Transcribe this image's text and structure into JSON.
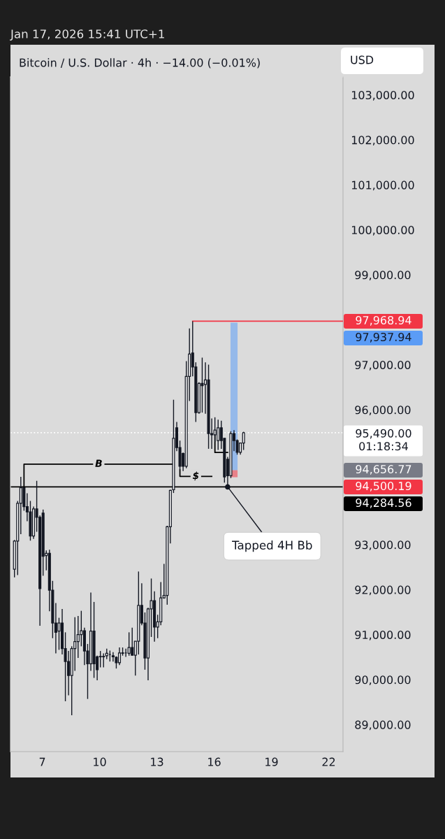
{
  "chart_data": {
    "type": "candlestick",
    "title": "Bitcoin / U.S. Dollar · 4h · −14.00 (−0.01%)",
    "subtitle": "Jan 17, 2026 15:41 UTC+1",
    "ylabel": "USD",
    "x": [
      "2026-01-05T13:00",
      "2026-01-05T17:00",
      "2026-01-05T21:00",
      "2026-01-06T01:00",
      "2026-01-06T05:00",
      "2026-01-06T09:00",
      "2026-01-06T13:00",
      "2026-01-06T17:00",
      "2026-01-06T21:00",
      "2026-01-07T01:00",
      "2026-01-07T05:00",
      "2026-01-07T09:00",
      "2026-01-07T13:00",
      "2026-01-07T17:00",
      "2026-01-07T21:00",
      "2026-01-08T01:00",
      "2026-01-08T05:00",
      "2026-01-08T09:00",
      "2026-01-08T13:00",
      "2026-01-08T17:00",
      "2026-01-08T21:00",
      "2026-01-09T01:00",
      "2026-01-09T05:00",
      "2026-01-09T09:00",
      "2026-01-09T13:00",
      "2026-01-09T17:00",
      "2026-01-09T21:00",
      "2026-01-10T01:00",
      "2026-01-10T05:00",
      "2026-01-10T09:00",
      "2026-01-10T13:00",
      "2026-01-10T17:00",
      "2026-01-10T21:00",
      "2026-01-11T01:00",
      "2026-01-11T05:00",
      "2026-01-11T09:00",
      "2026-01-11T13:00",
      "2026-01-11T17:00",
      "2026-01-11T21:00",
      "2026-01-12T01:00",
      "2026-01-12T05:00",
      "2026-01-12T09:00",
      "2026-01-12T13:00",
      "2026-01-12T17:00",
      "2026-01-12T21:00",
      "2026-01-13T01:00",
      "2026-01-13T05:00",
      "2026-01-13T09:00",
      "2026-01-13T13:00",
      "2026-01-13T17:00",
      "2026-01-13T21:00",
      "2026-01-14T01:00",
      "2026-01-14T05:00",
      "2026-01-14T09:00",
      "2026-01-14T13:00",
      "2026-01-14T17:00",
      "2026-01-14T21:00",
      "2026-01-15T01:00",
      "2026-01-15T05:00",
      "2026-01-15T09:00",
      "2026-01-15T13:00",
      "2026-01-15T17:00",
      "2026-01-15T21:00",
      "2026-01-16T01:00",
      "2026-01-16T05:00",
      "2026-01-16T09:00",
      "2026-01-16T13:00",
      "2026-01-16T17:00",
      "2026-01-16T21:00",
      "2026-01-17T01:00",
      "2026-01-17T05:00",
      "2026-01-17T09:00",
      "2026-01-17T13:00"
    ],
    "ohlc": [
      [
        92456,
        93105,
        92274,
        93079
      ],
      [
        93079,
        93973,
        92326,
        93921
      ],
      [
        93921,
        94508,
        93235,
        94264
      ],
      [
        94264,
        94275,
        93755,
        93848
      ],
      [
        93848,
        94145,
        93521,
        93729
      ],
      [
        93729,
        93973,
        93090,
        93194
      ],
      [
        93194,
        93848,
        93131,
        93796
      ],
      [
        93796,
        94420,
        93287,
        93609
      ],
      [
        93609,
        93650,
        91198,
        92024
      ],
      [
        93703,
        93781,
        92310,
        92741
      ],
      [
        92757,
        92871,
        92430,
        92809
      ],
      [
        92809,
        92890,
        91520,
        91988
      ],
      [
        91988,
        92196,
        90922,
        91260
      ],
      [
        91260,
        91702,
        90585,
        91052
      ],
      [
        91078,
        91375,
        90663,
        91260
      ],
      [
        91260,
        91572,
        90559,
        90689
      ],
      [
        90689,
        91052,
        89520,
        90403
      ],
      [
        90403,
        90637,
        89650,
        90091
      ],
      [
        90091,
        90741,
        89208,
        90689
      ],
      [
        90689,
        91390,
        90195,
        90845
      ],
      [
        90845,
        91416,
        90481,
        91000
      ],
      [
        91000,
        91530,
        90741,
        91089
      ],
      [
        91089,
        91156,
        90325,
        90637
      ],
      [
        90637,
        90793,
        89571,
        90351
      ],
      [
        90351,
        91936,
        90195,
        91078
      ],
      [
        91078,
        91728,
        90039,
        90351
      ],
      [
        90507,
        90533,
        89987,
        90221
      ],
      [
        90507,
        90637,
        90273,
        90517
      ],
      [
        90517,
        90585,
        90273,
        90507
      ],
      [
        90533,
        90689,
        90455,
        90585
      ],
      [
        90559,
        90647,
        90403,
        90559
      ],
      [
        90533,
        90611,
        90403,
        90507
      ],
      [
        90496,
        90517,
        90247,
        90377
      ],
      [
        90377,
        90715,
        90325,
        90595
      ],
      [
        90595,
        90715,
        90533,
        90585
      ],
      [
        90595,
        90689,
        90507,
        90595
      ],
      [
        90585,
        91052,
        90533,
        90715
      ],
      [
        90715,
        91156,
        90533,
        90543
      ],
      [
        90543,
        90855,
        90091,
        90855
      ],
      [
        90855,
        92404,
        90559,
        91650
      ],
      [
        91650,
        92144,
        91208,
        91260
      ],
      [
        91260,
        91494,
        90221,
        90481
      ],
      [
        90481,
        91600,
        89987,
        91572
      ],
      [
        91572,
        92248,
        90949,
        91754
      ],
      [
        91754,
        91962,
        90845,
        91167
      ],
      [
        91167,
        91442,
        90922,
        91286
      ],
      [
        91286,
        92170,
        91208,
        91816
      ],
      [
        91816,
        92575,
        91800,
        91873
      ],
      [
        91873,
        93420,
        91666,
        93401
      ],
      [
        93401,
        94220,
        93027,
        94207
      ],
      [
        94222,
        96223,
        94150,
        95366
      ],
      [
        95600,
        95729,
        95080,
        95158
      ],
      [
        95158,
        95314,
        94664,
        94742
      ],
      [
        95028,
        95050,
        94638,
        94742
      ],
      [
        94742,
        97081,
        94700,
        96743
      ],
      [
        96743,
        97808,
        96197,
        97237
      ],
      [
        97263,
        97968.94,
        96743,
        96951
      ],
      [
        96951,
        97055,
        95729,
        95937
      ],
      [
        95937,
        96613,
        95911,
        96587
      ],
      [
        96587,
        97159,
        95937,
        96535
      ],
      [
        96561,
        97055,
        95911,
        96665
      ],
      [
        96665,
        97003,
        95132,
        95470
      ],
      [
        95470,
        95807,
        95132,
        95444
      ],
      [
        95444,
        95833,
        95288,
        95548
      ],
      [
        95314,
        95781,
        95106,
        95600
      ],
      [
        95600,
        95755,
        95132,
        95314
      ],
      [
        95366,
        95366,
        94380,
        94508
      ],
      [
        94898,
        94950,
        94284.56,
        94534
      ],
      [
        94534,
        95522,
        94482,
        95470
      ],
      [
        95470,
        95547,
        95080,
        95314
      ],
      [
        95314,
        95340,
        95002,
        95054
      ],
      [
        95054,
        95262,
        95002,
        95262
      ],
      [
        95262,
        95510,
        95106,
        95490
      ]
    ],
    "series": [
      {
        "type": "line",
        "name": "B",
        "color": "#000000",
        "x": [
          "2026-01-06T01:00",
          "2026-01-06T01:00",
          "2026-01-13T21:00"
        ],
        "values": [
          94280,
          94790,
          94790
        ]
      },
      {
        "type": "line",
        "name": "$",
        "color": "#000000",
        "x": [
          "2026-01-14T05:00",
          "2026-01-14T05:00",
          "2026-01-15T21:00"
        ],
        "values": [
          94660,
          94520,
          94520
        ]
      },
      {
        "type": "line",
        "color": "#000000",
        "x": [
          "2026-01-16T01:00",
          "2026-01-16T01:00",
          "2026-01-16T17:00"
        ],
        "values": [
          95470,
          95050,
          95050
        ]
      },
      {
        "type": "line",
        "color": "#f23645",
        "x": [
          "2026-01-14T21:00",
          "2026-01-22T18:00"
        ],
        "values": [
          97968.94,
          97968.94
        ]
      },
      {
        "type": "bar",
        "color": "#5b9cf6",
        "x": [
          "2026-01-17T01:00"
        ],
        "base": [
          94656.77
        ],
        "values": [
          3281.17
        ]
      },
      {
        "type": "bar",
        "color": "#f23645",
        "x": [
          "2026-01-17T01:00"
        ],
        "base": [
          94500.19
        ],
        "values": [
          156.58
        ]
      }
    ],
    "ref_lines": [
      {
        "axis": "y",
        "value": 95490.0,
        "label": "95,490.00\n01:18:34",
        "color": "#ffffff",
        "line_style": "dotted"
      },
      {
        "axis": "y",
        "value": 94284.56,
        "label": "94,284.56",
        "color": "#000000",
        "line_style": "solid"
      }
    ],
    "annotations": [
      "97,968.94",
      "97,937.94",
      "94,656.77",
      "94,500.19",
      {
        "text": "Tapped 4H Bb",
        "x": "2026-01-16T17:00",
        "y": 94284.56
      }
    ],
    "xlim": [
      "2026-01-05T08:00",
      "2026-01-22T18:00"
    ],
    "xticks": [
      {
        "value": "2026-01-07",
        "label": "7"
      },
      {
        "value": "2026-01-10",
        "label": "10"
      },
      {
        "value": "2026-01-13",
        "label": "13"
      },
      {
        "value": "2026-01-16",
        "label": "16"
      },
      {
        "value": "2026-01-19",
        "label": "19"
      },
      {
        "value": "2026-01-22",
        "label": "22"
      }
    ],
    "ylim": [
      88400,
      103400
    ],
    "yticks": [
      {
        "value": 89000,
        "label": "89,000.00"
      },
      {
        "value": 90000,
        "label": "90,000.00"
      },
      {
        "value": 91000,
        "label": "91,000.00"
      },
      {
        "value": 92000,
        "label": "92,000.00"
      },
      {
        "value": 93000,
        "label": "93,000.00"
      },
      {
        "value": 96000,
        "label": "96,000.00"
      },
      {
        "value": 97000,
        "label": "97,000.00"
      },
      {
        "value": 99000,
        "label": "99,000.00"
      },
      {
        "value": 100000,
        "label": "100,000.00"
      },
      {
        "value": 101000,
        "label": "101,000.00"
      },
      {
        "value": 102000,
        "label": "102,000.00"
      },
      {
        "value": 103000,
        "label": "103,000.00"
      }
    ]
  }
}
